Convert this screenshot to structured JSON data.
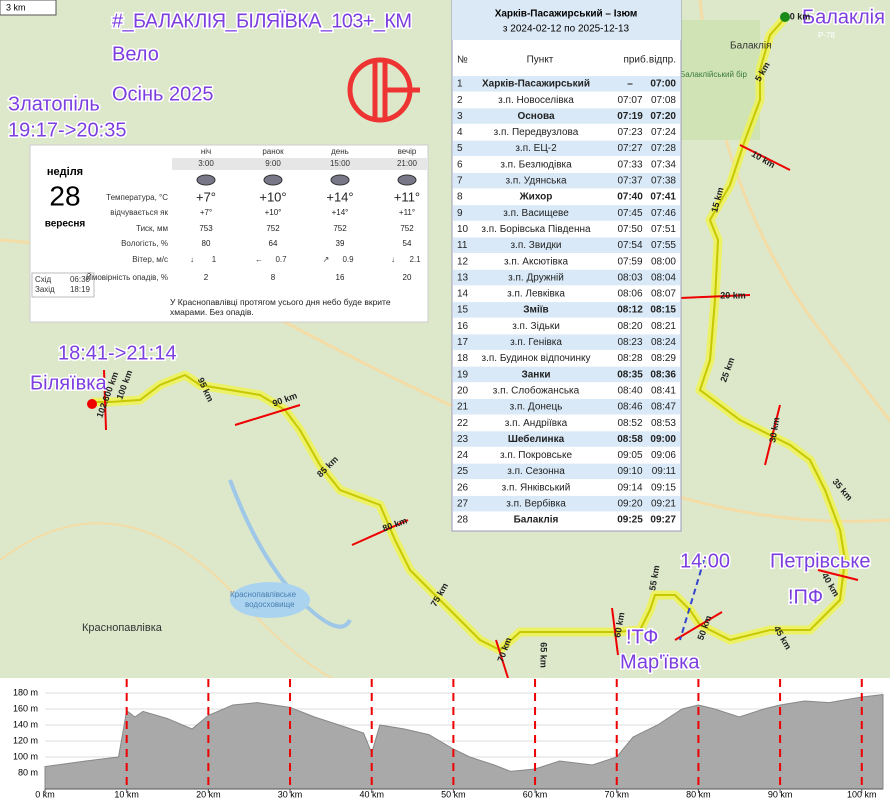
{
  "map": {
    "title": "#_БАЛАКЛІЯ_БІЛЯЇВКА_103+_КМ",
    "subtitle1": "Вело",
    "subtitle2": "Осінь 2025",
    "scale": "3 km",
    "zlatopil": "Златопіль",
    "zlatopil_time": "19:17->20:35",
    "start_time": "18:41->21:14",
    "bilyaivka": "Біляївка",
    "balakliya": "Балаклія",
    "balakliya_small": "Балаклія",
    "road": "Р-78",
    "petrivske": "Петрівське",
    "pf": "!ПФ",
    "time_1400": "14:00",
    "tf": "!ТФ",
    "marivka": "Мар'ївка",
    "krasnopavlivka": "Краснопавлівка",
    "reservoir1": "Краснопавлівське",
    "reservoir2": "водосховище",
    "forest": "Балаклійський бір",
    "km_labels": [
      "0 km",
      "5 km",
      "10 km",
      "15 km",
      "20 km",
      "25 km",
      "30 km",
      "35 km",
      "40 km",
      "45 km",
      "50 km",
      "55 km",
      "60 km",
      "65 km",
      "70 km",
      "75 km",
      "80 km",
      "85 km",
      "90 km",
      "95 km",
      "100 km",
      "102.600 km"
    ]
  },
  "weather": {
    "day": "неділя",
    "date": "28",
    "month": "вересня",
    "sunrise_label": "Схід",
    "sunrise": "06:30",
    "sunset_label": "Захід",
    "sunset": "18:19",
    "row_labels": [
      "Температура, °С",
      "відчувається як",
      "Тиск, мм",
      "Вологість, %",
      "Вітер, м/с",
      "Ймовірність опадів, %"
    ],
    "periods": [
      {
        "name": "ніч",
        "time": "3:00",
        "temp": "+7°",
        "feels": "+7°",
        "pressure": 753,
        "humidity": 80,
        "wind_dir": "↓",
        "wind": 1,
        "precip": 2
      },
      {
        "name": "ранок",
        "time": "9:00",
        "temp": "+10°",
        "feels": "+10°",
        "pressure": 752,
        "humidity": 64,
        "wind_dir": "←",
        "wind": 0.7,
        "precip": 8
      },
      {
        "name": "день",
        "time": "15:00",
        "temp": "+14°",
        "feels": "+14°",
        "pressure": 752,
        "humidity": 39,
        "wind_dir": "↗",
        "wind": 0.9,
        "precip": 16
      },
      {
        "name": "вечір",
        "time": "21:00",
        "temp": "+11°",
        "feels": "+11°",
        "pressure": 752,
        "humidity": 54,
        "wind_dir": "↓",
        "wind": 2.1,
        "precip": 20
      }
    ],
    "note": "У Краснопавлівці протягом усього дня небо буде вкрите хмарами. Без опадів."
  },
  "timetable": {
    "title": "Харків-Пасажирський – Ізюм",
    "period": "з 2024-02-12 по 2025-12-13",
    "columns": [
      "№",
      "Пункт",
      "приб.",
      "відпр."
    ],
    "rows": [
      {
        "n": 1,
        "stop": "Харків-Пасажирський",
        "arr": "–",
        "dep": "07:00",
        "bold": true
      },
      {
        "n": 2,
        "stop": "з.п. Новоселівка",
        "arr": "07:07",
        "dep": "07:08"
      },
      {
        "n": 3,
        "stop": "Основа",
        "arr": "07:19",
        "dep": "07:20",
        "bold": true
      },
      {
        "n": 4,
        "stop": "з.п. Передвузлова",
        "arr": "07:23",
        "dep": "07:24"
      },
      {
        "n": 5,
        "stop": "з.п. ЕЦ-2",
        "arr": "07:27",
        "dep": "07:28"
      },
      {
        "n": 6,
        "stop": "з.п. Безлюдівка",
        "arr": "07:33",
        "dep": "07:34"
      },
      {
        "n": 7,
        "stop": "з.п. Удянська",
        "arr": "07:37",
        "dep": "07:38"
      },
      {
        "n": 8,
        "stop": "Жихор",
        "arr": "07:40",
        "dep": "07:41",
        "bold": true
      },
      {
        "n": 9,
        "stop": "з.п. Васищеве",
        "arr": "07:45",
        "dep": "07:46"
      },
      {
        "n": 10,
        "stop": "з.п. Борівська Південна",
        "arr": "07:50",
        "dep": "07:51"
      },
      {
        "n": 11,
        "stop": "з.п. Звидки",
        "arr": "07:54",
        "dep": "07:55"
      },
      {
        "n": 12,
        "stop": "з.п. Аксютівка",
        "arr": "07:59",
        "dep": "08:00"
      },
      {
        "n": 13,
        "stop": "з.п. Дружній",
        "arr": "08:03",
        "dep": "08:04"
      },
      {
        "n": 14,
        "stop": "з.п. Левківка",
        "arr": "08:06",
        "dep": "08:07"
      },
      {
        "n": 15,
        "stop": "Зміїв",
        "arr": "08:12",
        "dep": "08:15",
        "bold": true
      },
      {
        "n": 16,
        "stop": "з.п. Зідьки",
        "arr": "08:20",
        "dep": "08:21"
      },
      {
        "n": 17,
        "stop": "з.п. Генівка",
        "arr": "08:23",
        "dep": "08:24"
      },
      {
        "n": 18,
        "stop": "з.п. Будинок відпочинку",
        "arr": "08:28",
        "dep": "08:29"
      },
      {
        "n": 19,
        "stop": "Занки",
        "arr": "08:35",
        "dep": "08:36",
        "bold": true
      },
      {
        "n": 20,
        "stop": "з.п. Слобожанська",
        "arr": "08:40",
        "dep": "08:41"
      },
      {
        "n": 21,
        "stop": "з.п. Донець",
        "arr": "08:46",
        "dep": "08:47"
      },
      {
        "n": 22,
        "stop": "з.п. Андріївка",
        "arr": "08:52",
        "dep": "08:53"
      },
      {
        "n": 23,
        "stop": "Шебелинка",
        "arr": "08:58",
        "dep": "09:00",
        "bold": true
      },
      {
        "n": 24,
        "stop": "з.п. Покровське",
        "arr": "09:05",
        "dep": "09:06"
      },
      {
        "n": 25,
        "stop": "з.п. Сезонна",
        "arr": "09:10",
        "dep": "09:11"
      },
      {
        "n": 26,
        "stop": "з.п. Янківський",
        "arr": "09:14",
        "dep": "09:15"
      },
      {
        "n": 27,
        "stop": "з.п. Вербівка",
        "arr": "09:20",
        "dep": "09:21"
      },
      {
        "n": 28,
        "stop": "Балаклія",
        "arr": "09:25",
        "dep": "09:27",
        "bold": true
      }
    ]
  },
  "elevation_profile": {
    "type": "area",
    "color": "#a9a9a9",
    "x": [
      0,
      5,
      9,
      10,
      11,
      12,
      15,
      18,
      20,
      23,
      26,
      30,
      33,
      36,
      39,
      40,
      41,
      44,
      47,
      50,
      52,
      55,
      57,
      60,
      63,
      67,
      70,
      72,
      75,
      78,
      80,
      82,
      85,
      88,
      90,
      93,
      96,
      100,
      102.6
    ],
    "values": [
      88,
      95,
      100,
      158,
      150,
      157,
      148,
      135,
      152,
      165,
      168,
      162,
      150,
      140,
      130,
      105,
      140,
      135,
      128,
      110,
      100,
      90,
      82,
      85,
      95,
      90,
      100,
      125,
      140,
      160,
      165,
      160,
      150,
      160,
      165,
      170,
      168,
      175,
      178
    ],
    "xlim": [
      0,
      102.6
    ],
    "ylim": [
      60,
      190
    ],
    "xticks": [
      {
        "value": 0,
        "label": "0 km"
      },
      {
        "value": 10,
        "label": "10 km"
      },
      {
        "value": 20,
        "label": "20 km"
      },
      {
        "value": 30,
        "label": "30 km"
      },
      {
        "value": 40,
        "label": "40 km"
      },
      {
        "value": 50,
        "label": "50 km"
      },
      {
        "value": 60,
        "label": "60 km"
      },
      {
        "value": 70,
        "label": "70 km"
      },
      {
        "value": 80,
        "label": "80 km"
      },
      {
        "value": 90,
        "label": "90 km"
      },
      {
        "value": 100,
        "label": "100 km"
      }
    ],
    "yticks": [
      {
        "value": 80,
        "label": "80 m"
      },
      {
        "value": 100,
        "label": "100 m"
      },
      {
        "value": 120,
        "label": "120 m"
      },
      {
        "value": 140,
        "label": "140 m"
      },
      {
        "value": 160,
        "label": "160 m"
      },
      {
        "value": 180,
        "label": "180 m"
      }
    ]
  }
}
